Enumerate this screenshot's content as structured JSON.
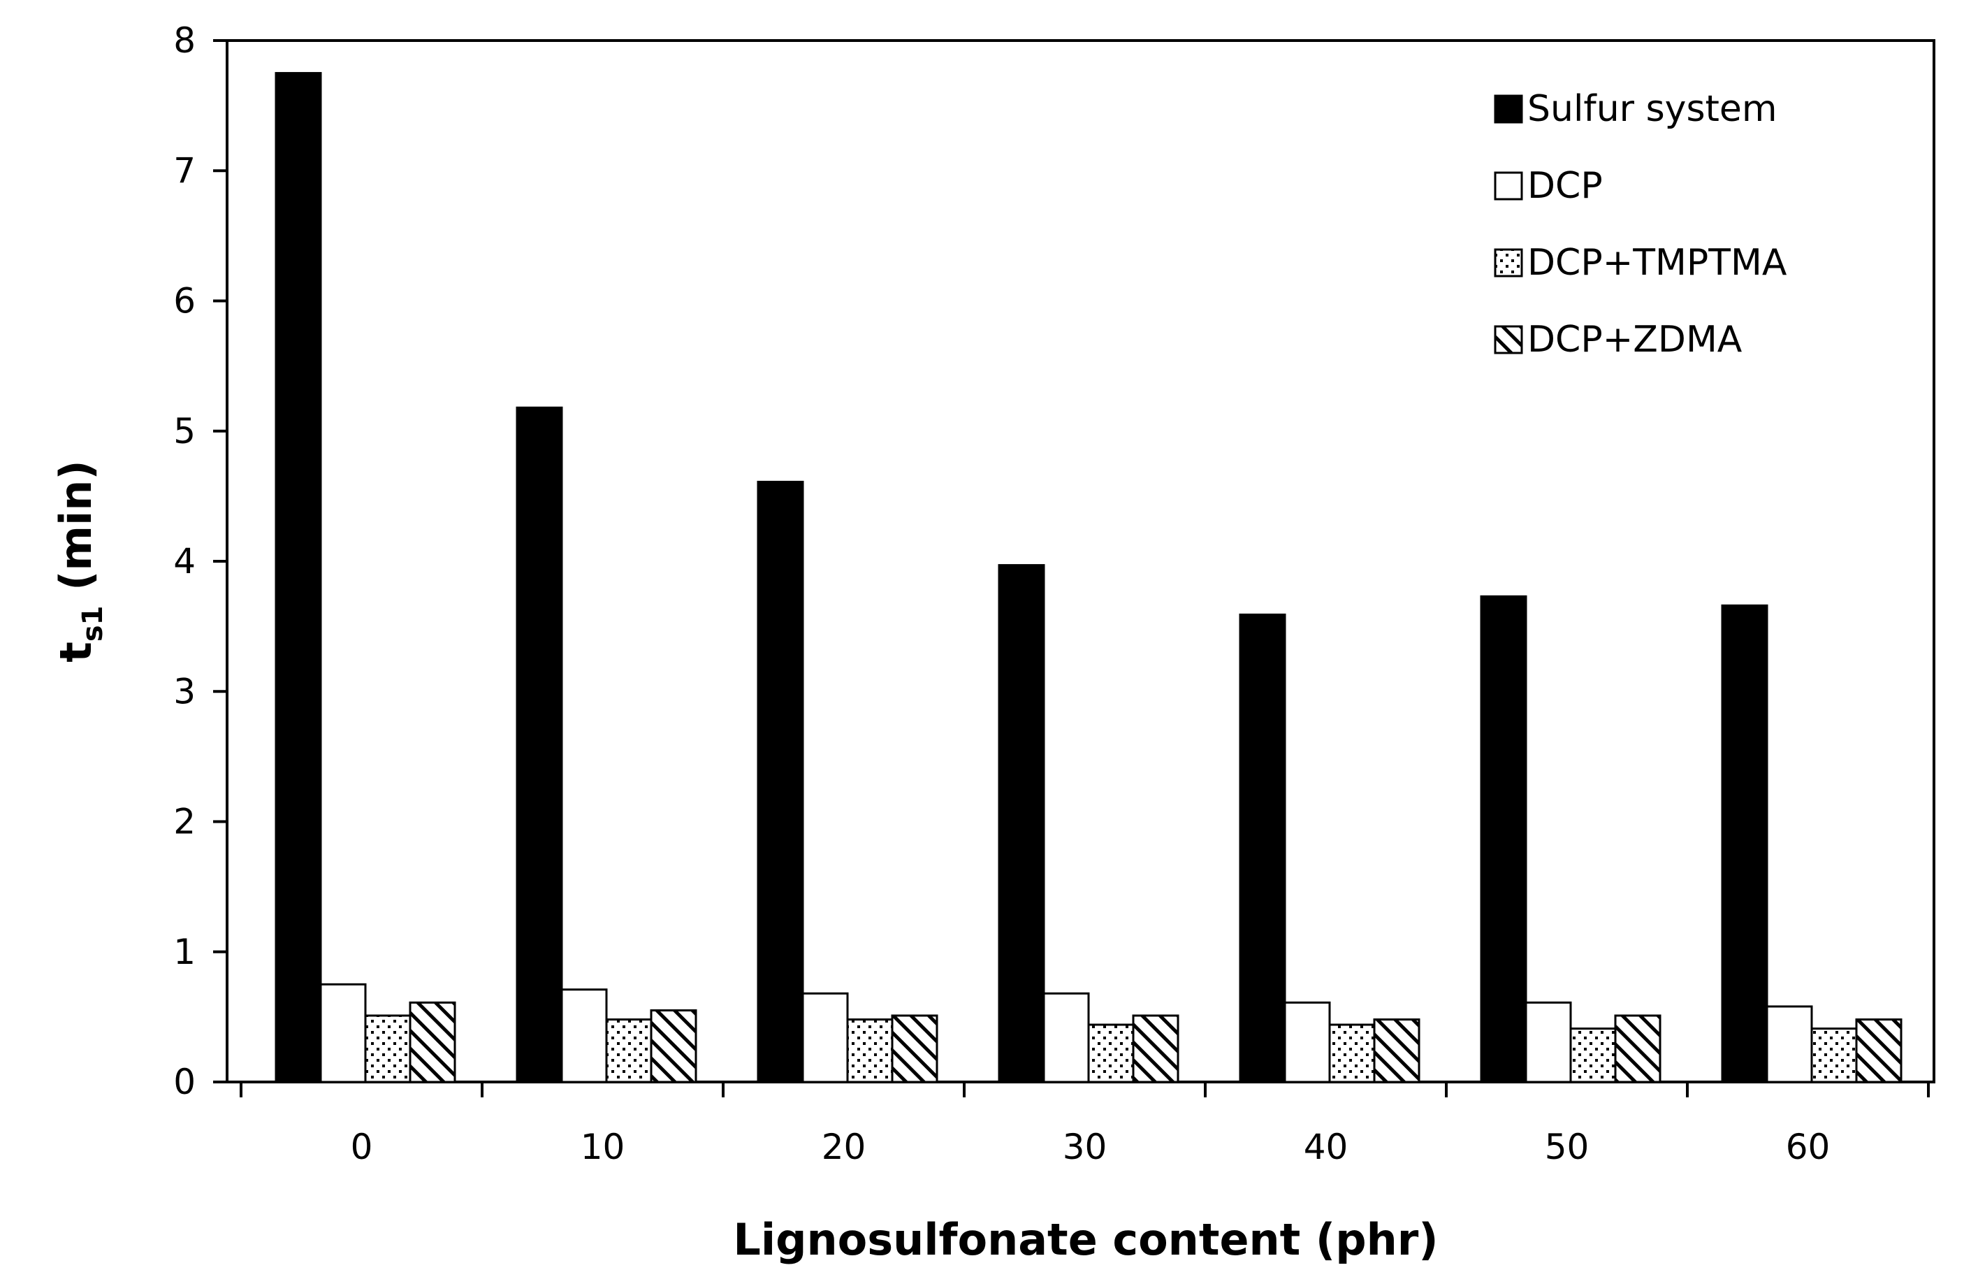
{
  "chart_data": {
    "type": "bar",
    "title": "",
    "xlabel": "Lignosulfonate content (phr)",
    "ylabel_main": "t",
    "ylabel_sub": "s1",
    "ylabel_unit": " (min)",
    "ylim": [
      0,
      8
    ],
    "yticks": [
      0,
      1,
      2,
      3,
      4,
      5,
      6,
      7,
      8
    ],
    "categories": [
      "0",
      "10",
      "20",
      "30",
      "40",
      "50",
      "60"
    ],
    "legend_position": "top-right",
    "series": [
      {
        "name": "Sulfur system",
        "pattern": "solid",
        "values": [
          7.75,
          5.18,
          4.61,
          3.97,
          3.59,
          3.73,
          3.66
        ]
      },
      {
        "name": "DCP",
        "pattern": "white",
        "values": [
          0.75,
          0.71,
          0.68,
          0.68,
          0.61,
          0.61,
          0.58
        ]
      },
      {
        "name": "DCP+TMPTMA",
        "pattern": "dots",
        "values": [
          0.51,
          0.48,
          0.48,
          0.44,
          0.44,
          0.41,
          0.41
        ]
      },
      {
        "name": "DCP+ZDMA",
        "pattern": "hatch",
        "values": [
          0.61,
          0.55,
          0.51,
          0.51,
          0.48,
          0.51,
          0.48
        ]
      }
    ],
    "colors": {
      "axis": "#000000",
      "bar_fill_solid": "#000000",
      "bar_fill_white": "#ffffff",
      "pattern_ink": "#000000"
    }
  }
}
